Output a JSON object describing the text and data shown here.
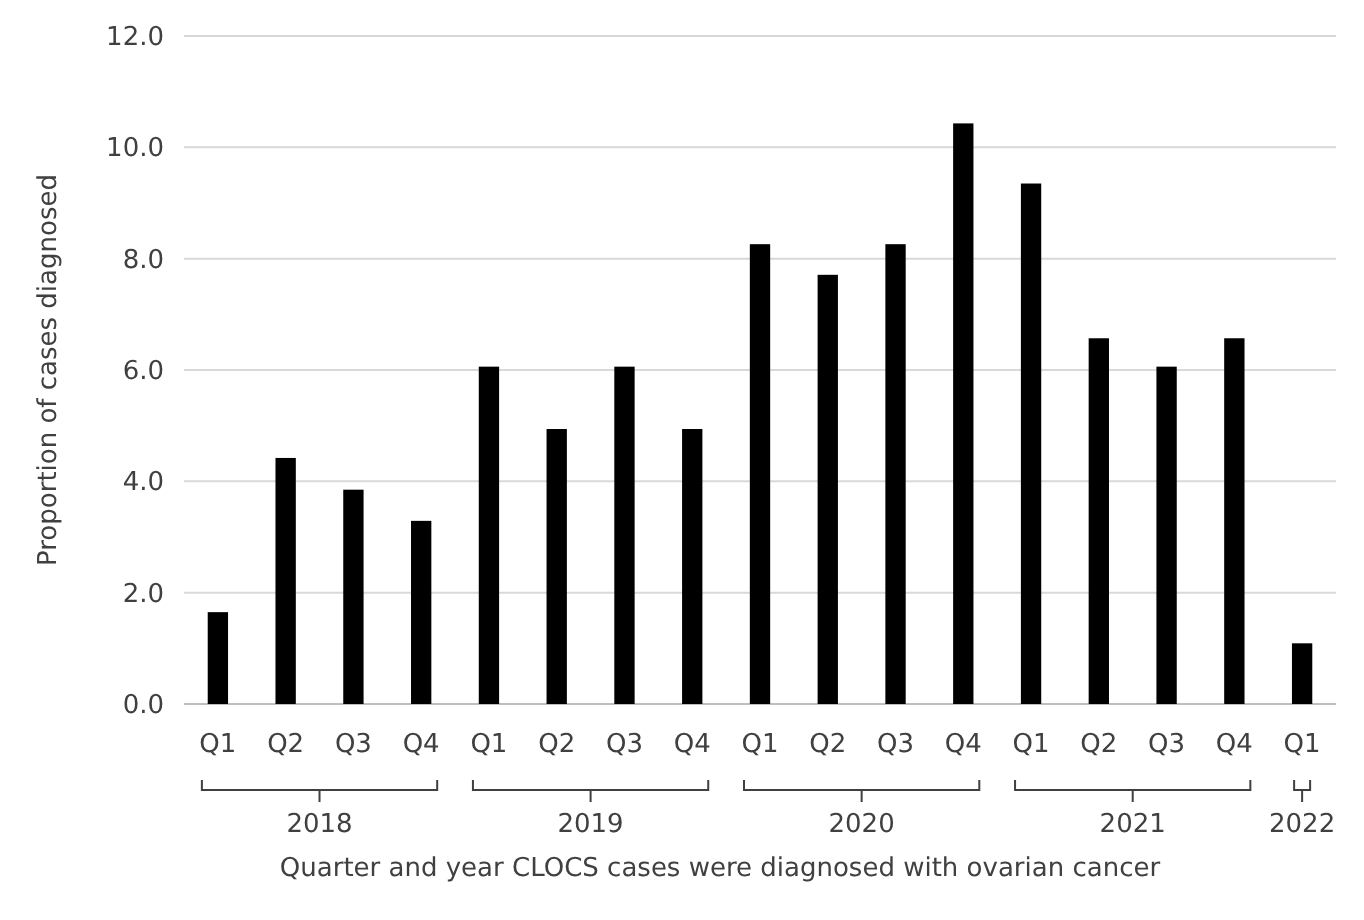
{
  "chart_data": {
    "type": "bar",
    "xlabel": "Quarter and year CLOCS cases were diagnosed with ovarian cancer",
    "ylabel": "Proportion of cases diagnosed",
    "categories": [
      "Q1",
      "Q2",
      "Q3",
      "Q4",
      "Q1",
      "Q2",
      "Q3",
      "Q4",
      "Q1",
      "Q2",
      "Q3",
      "Q4",
      "Q1",
      "Q2",
      "Q3",
      "Q4",
      "Q1"
    ],
    "values": [
      1.65,
      4.42,
      3.85,
      3.29,
      6.06,
      4.94,
      6.06,
      4.94,
      8.26,
      7.71,
      8.26,
      10.43,
      9.35,
      6.57,
      6.06,
      6.57,
      1.09
    ],
    "color": "#000000",
    "ylim": [
      0,
      12
    ],
    "yticks": [
      {
        "value": 0,
        "label": "0.0"
      },
      {
        "value": 2,
        "label": "2.0"
      },
      {
        "value": 4,
        "label": "4.0"
      },
      {
        "value": 6,
        "label": "6.0"
      },
      {
        "value": 8,
        "label": "8.0"
      },
      {
        "value": 10,
        "label": "10.0"
      },
      {
        "value": 12,
        "label": "12.0"
      }
    ],
    "grid": "y",
    "annotations": [
      "2018",
      "2019",
      "2020",
      "2021",
      "2022"
    ]
  }
}
